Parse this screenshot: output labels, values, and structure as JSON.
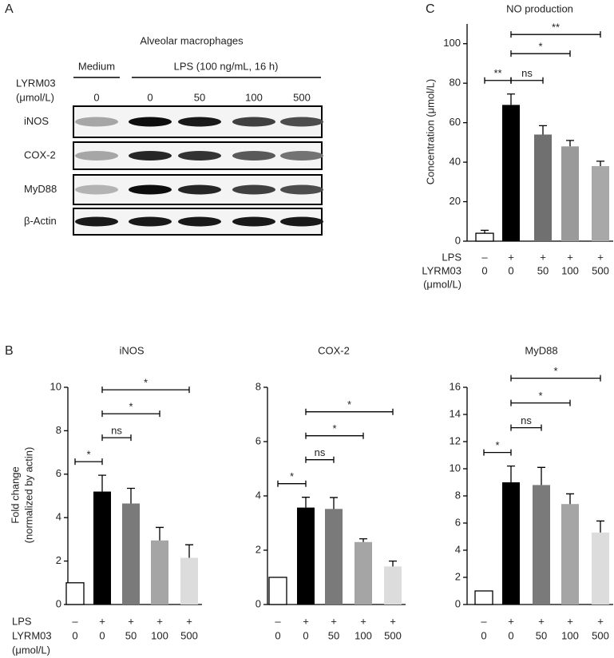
{
  "panel_a": {
    "label": "A",
    "title": "Alveolar macrophages",
    "groups": [
      "Medium",
      "LPS (100 ng/mL, 16 h)"
    ],
    "treatment_label": [
      "LYRM03",
      "(μmol/L)"
    ],
    "doses": [
      "0",
      "0",
      "50",
      "100",
      "500"
    ],
    "rows": [
      "iNOS",
      "COX-2",
      "MyD88",
      "β-Actin"
    ]
  },
  "chart_data": [
    {
      "type": "bar",
      "panel_label": "C",
      "title": "NO production",
      "ylabel": [
        "Concentration (μmol/L)"
      ],
      "categories": [
        "0",
        "0",
        "50",
        "100",
        "500"
      ],
      "lps": [
        "–",
        "+",
        "+",
        "+",
        "+"
      ],
      "row_labels": [
        "LPS",
        "LYRM03",
        "(μmol/L)"
      ],
      "values": [
        4,
        69,
        54,
        48,
        38
      ],
      "errors": [
        1.5,
        5.5,
        4.5,
        3,
        2.5
      ],
      "colors": [
        "#ffffff",
        "#000000",
        "#707070",
        "#9a9a9a",
        "#a8a8a8"
      ],
      "ylim": [
        0,
        110
      ],
      "yticks": [
        0,
        20,
        40,
        60,
        80,
        100
      ],
      "comparisons": [
        {
          "pair": [
            0,
            1
          ],
          "label": "**"
        },
        {
          "pair": [
            1,
            2
          ],
          "label": "ns"
        },
        {
          "pair": [
            1,
            3
          ],
          "label": "*"
        },
        {
          "pair": [
            1,
            4
          ],
          "label": "**"
        }
      ]
    },
    {
      "type": "bar",
      "panel_label": "B",
      "title": "iNOS",
      "ylabel": [
        "Fold change",
        "(normalized by actin)"
      ],
      "categories": [
        "0",
        "0",
        "50",
        "100",
        "500"
      ],
      "lps": [
        "–",
        "+",
        "+",
        "+",
        "+"
      ],
      "row_labels": [
        "LPS",
        "LYRM03",
        "(μmol/L)"
      ],
      "values": [
        1,
        5.2,
        4.65,
        2.95,
        2.15
      ],
      "errors": [
        null,
        0.75,
        0.7,
        0.6,
        0.6
      ],
      "colors": [
        "#ffffff",
        "#000000",
        "#7a7a7a",
        "#a5a5a5",
        "#dcdcdc"
      ],
      "ylim": [
        0,
        10
      ],
      "yticks": [
        0,
        2,
        4,
        6,
        8,
        10
      ],
      "comparisons": [
        {
          "pair": [
            0,
            1
          ],
          "label": "*"
        },
        {
          "pair": [
            1,
            2
          ],
          "label": "ns"
        },
        {
          "pair": [
            1,
            3
          ],
          "label": "*"
        },
        {
          "pair": [
            1,
            4
          ],
          "label": "*"
        }
      ]
    },
    {
      "type": "bar",
      "title": "COX-2",
      "categories": [
        "0",
        "0",
        "50",
        "100",
        "500"
      ],
      "lps": [
        "–",
        "+",
        "+",
        "+",
        "+"
      ],
      "values": [
        1,
        3.57,
        3.52,
        2.3,
        1.4
      ],
      "errors": [
        null,
        0.38,
        0.42,
        0.12,
        0.2
      ],
      "colors": [
        "#ffffff",
        "#000000",
        "#7a7a7a",
        "#a5a5a5",
        "#dcdcdc"
      ],
      "ylim": [
        0,
        8
      ],
      "yticks": [
        0,
        2,
        4,
        6,
        8
      ],
      "comparisons": [
        {
          "pair": [
            0,
            1
          ],
          "label": "*"
        },
        {
          "pair": [
            1,
            2
          ],
          "label": "ns"
        },
        {
          "pair": [
            1,
            3
          ],
          "label": "*"
        },
        {
          "pair": [
            1,
            4
          ],
          "label": "*"
        }
      ]
    },
    {
      "type": "bar",
      "title": "MyD88",
      "categories": [
        "0",
        "0",
        "50",
        "100",
        "500"
      ],
      "lps": [
        "–",
        "+",
        "+",
        "+",
        "+"
      ],
      "values": [
        1,
        9.0,
        8.8,
        7.4,
        5.3
      ],
      "errors": [
        null,
        1.2,
        1.3,
        0.75,
        0.85
      ],
      "colors": [
        "#ffffff",
        "#000000",
        "#7a7a7a",
        "#a5a5a5",
        "#dcdcdc"
      ],
      "ylim": [
        0,
        16
      ],
      "yticks": [
        0,
        2,
        4,
        6,
        8,
        10,
        12,
        14,
        16
      ],
      "comparisons": [
        {
          "pair": [
            0,
            1
          ],
          "label": "*"
        },
        {
          "pair": [
            1,
            2
          ],
          "label": "ns"
        },
        {
          "pair": [
            1,
            3
          ],
          "label": "*"
        },
        {
          "pair": [
            1,
            4
          ],
          "label": "*"
        }
      ]
    }
  ]
}
